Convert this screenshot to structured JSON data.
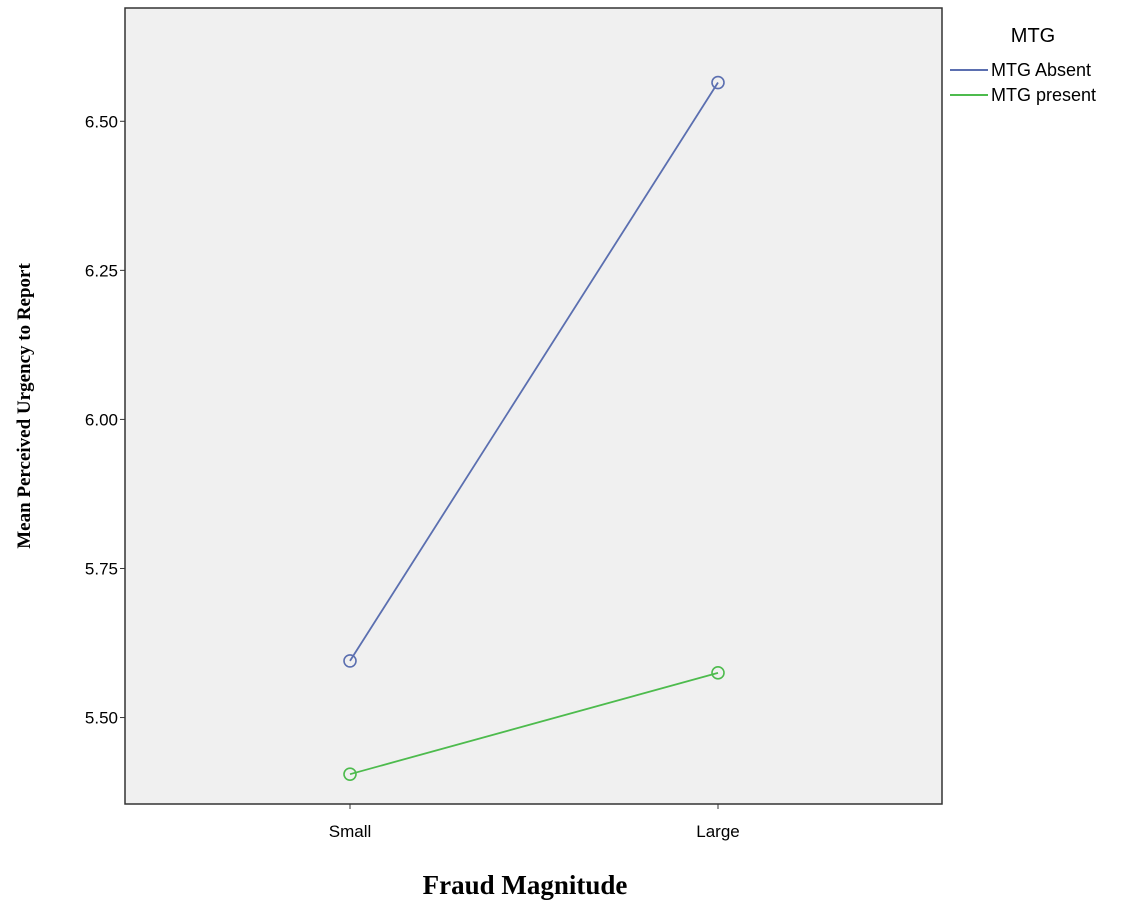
{
  "chart_data": {
    "type": "line",
    "categories": [
      "Small",
      "Large"
    ],
    "series": [
      {
        "name": "MTG Absent",
        "values": [
          5.595,
          6.565
        ],
        "color": "#5b6fb0"
      },
      {
        "name": "MTG present",
        "values": [
          5.405,
          5.575
        ],
        "color": "#4dbb4d"
      }
    ],
    "xlabel": "Fraud Magnitude",
    "ylabel": "Mean Perceived Urgency to Report",
    "ylim": [
      5.355,
      6.69
    ],
    "yticks": [
      "5.50",
      "5.75",
      "6.00",
      "6.25",
      "6.50"
    ],
    "legend_title": "MTG",
    "legend_position": "right",
    "grid": false,
    "plot_background": "#f0f0f0",
    "marker": "open-circle"
  }
}
